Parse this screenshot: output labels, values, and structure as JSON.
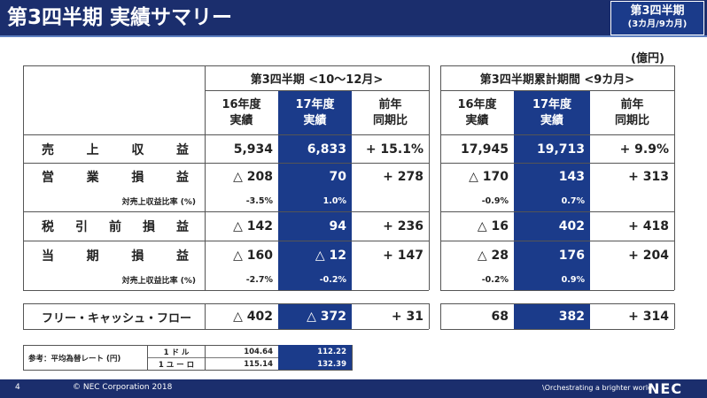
{
  "header": {
    "title": "第3四半期 実績サマリー",
    "badge_line1": "第3四半期",
    "badge_line2": "(3カ月/9カ月)"
  },
  "unit": "(億円)",
  "groups": {
    "q3": "第3四半期 <10〜12月>",
    "ytd": "第3四半期累計期間 <9カ月>"
  },
  "columns": {
    "fy16_l1": "16年度",
    "fy16_l2": "実績",
    "fy17_l1": "17年度",
    "fy17_l2": "実績",
    "yoy_l1": "前年",
    "yoy_l2": "同期比"
  },
  "rows": {
    "revenue": {
      "label": [
        "売",
        "上",
        "収",
        "益"
      ],
      "q3": [
        "5,934",
        "6,833",
        "+ 15.1%"
      ],
      "ytd": [
        "17,945",
        "19,713",
        "+ 9.9%"
      ]
    },
    "op_income": {
      "label": [
        "営",
        "業",
        "損",
        "益"
      ],
      "q3": [
        "△ 208",
        "70",
        "+ 278"
      ],
      "ytd": [
        "△ 170",
        "143",
        "+ 313"
      ]
    },
    "op_ratio": {
      "label": "対売上収益比率 (%)",
      "q3": [
        "-3.5%",
        "1.0%"
      ],
      "ytd": [
        "-0.9%",
        "0.7%"
      ]
    },
    "pretax": {
      "label": [
        "税",
        "引",
        "前",
        "損",
        "益"
      ],
      "q3": [
        "△ 142",
        "94",
        "+ 236"
      ],
      "ytd": [
        "△ 16",
        "402",
        "+ 418"
      ]
    },
    "net": {
      "label": [
        "当",
        "期",
        "損",
        "益"
      ],
      "q3": [
        "△ 160",
        "△ 12",
        "+ 147"
      ],
      "ytd": [
        "△ 28",
        "176",
        "+ 204"
      ]
    },
    "net_ratio": {
      "label": "対売上収益比率 (%)",
      "q3": [
        "-2.7%",
        "-0.2%"
      ],
      "ytd": [
        "-0.2%",
        "0.9%"
      ]
    },
    "fcf": {
      "label": "フリー・キャッシュ・フロー",
      "q3": [
        "△ 402",
        "△ 372",
        "+ 31"
      ],
      "ytd": [
        "68",
        "382",
        "+ 314"
      ]
    }
  },
  "fx": {
    "label": "参考：平均為替レート (円)",
    "usd_label": "1 ド ル",
    "usd": [
      "104.64",
      "112.22"
    ],
    "eur_label": "1 ユ ー ロ",
    "eur": [
      "115.14",
      "132.39"
    ]
  },
  "footer": {
    "page": "4",
    "copyright": "© NEC Corporation 2018",
    "tagline": "\\Orchestrating a brighter world",
    "logo": "NEC"
  },
  "colors": {
    "navy": "#1b2e6d",
    "highlight": "#1b3b8a"
  }
}
